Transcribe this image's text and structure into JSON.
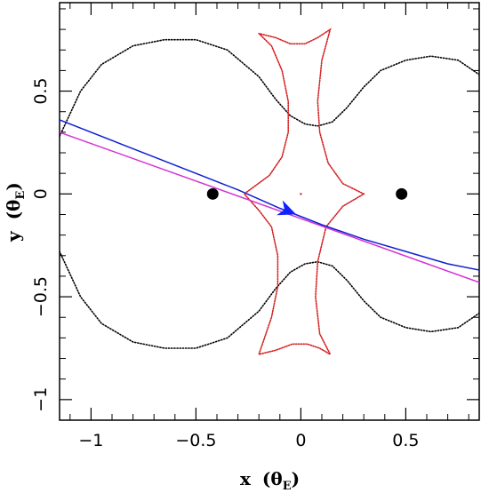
{
  "chart_data": {
    "type": "line",
    "xlabel": "x",
    "ylabel": "y",
    "axis_unit_symbol": "θ",
    "axis_unit_subscript": "E",
    "xlim": [
      -1.15,
      0.85
    ],
    "ylim": [
      -1.1,
      0.93
    ],
    "x_ticks": [
      -1,
      -0.5,
      0,
      0.5
    ],
    "x_tick_labels": [
      "−1",
      "−0.5",
      "0",
      "0.5"
    ],
    "y_ticks": [
      -1,
      -0.5,
      0,
      0.5
    ],
    "y_tick_labels": [
      "−1",
      "−0.5",
      "0",
      "0.5"
    ],
    "grid": false,
    "lenses": [
      {
        "x": -0.42,
        "y": 0.0
      },
      {
        "x": 0.48,
        "y": 0.0
      }
    ],
    "caustic_color": "#d42020",
    "caustic": [
      [
        -0.2,
        0.78
      ],
      [
        -0.14,
        0.72
      ],
      [
        -0.09,
        0.6
      ],
      [
        -0.06,
        0.45
      ],
      [
        -0.06,
        0.3
      ],
      [
        -0.09,
        0.18
      ],
      [
        -0.15,
        0.09
      ],
      [
        -0.27,
        0.0
      ],
      [
        -0.2,
        -0.08
      ],
      [
        -0.14,
        -0.16
      ],
      [
        -0.11,
        -0.3
      ],
      [
        -0.11,
        -0.45
      ],
      [
        -0.14,
        -0.6
      ],
      [
        -0.2,
        -0.78
      ],
      [
        -0.12,
        -0.76
      ],
      [
        -0.04,
        -0.73
      ],
      [
        0.03,
        -0.73
      ],
      [
        0.09,
        -0.75
      ],
      [
        0.14,
        -0.78
      ],
      [
        0.09,
        -0.68
      ],
      [
        0.07,
        -0.5
      ],
      [
        0.08,
        -0.33
      ],
      [
        0.12,
        -0.16
      ],
      [
        0.2,
        -0.06
      ],
      [
        0.3,
        0.0
      ],
      [
        0.2,
        0.05
      ],
      [
        0.13,
        0.15
      ],
      [
        0.09,
        0.3
      ],
      [
        0.08,
        0.45
      ],
      [
        0.1,
        0.65
      ],
      [
        0.14,
        0.8
      ],
      [
        0.08,
        0.76
      ],
      [
        0.02,
        0.73
      ],
      [
        -0.05,
        0.73
      ],
      [
        -0.12,
        0.76
      ],
      [
        -0.2,
        0.78
      ]
    ],
    "caustic_center_dot": {
      "x": 0.0,
      "y": 0.0
    },
    "critical_curve_color": "#000000",
    "critical_upper": [
      [
        -1.15,
        0.28
      ],
      [
        -1.05,
        0.5
      ],
      [
        -0.95,
        0.63
      ],
      [
        -0.8,
        0.72
      ],
      [
        -0.65,
        0.75
      ],
      [
        -0.5,
        0.75
      ],
      [
        -0.35,
        0.7
      ],
      [
        -0.2,
        0.57
      ],
      [
        -0.12,
        0.46
      ],
      [
        -0.05,
        0.38
      ],
      [
        0.02,
        0.34
      ],
      [
        0.08,
        0.33
      ],
      [
        0.15,
        0.35
      ],
      [
        0.22,
        0.42
      ],
      [
        0.3,
        0.52
      ],
      [
        0.38,
        0.6
      ],
      [
        0.5,
        0.65
      ],
      [
        0.62,
        0.67
      ],
      [
        0.75,
        0.65
      ],
      [
        0.85,
        0.58
      ]
    ],
    "critical_lower": [
      [
        -1.15,
        -0.28
      ],
      [
        -1.05,
        -0.5
      ],
      [
        -0.95,
        -0.63
      ],
      [
        -0.8,
        -0.72
      ],
      [
        -0.65,
        -0.75
      ],
      [
        -0.5,
        -0.75
      ],
      [
        -0.35,
        -0.7
      ],
      [
        -0.2,
        -0.57
      ],
      [
        -0.12,
        -0.46
      ],
      [
        -0.05,
        -0.38
      ],
      [
        0.02,
        -0.34
      ],
      [
        0.08,
        -0.33
      ],
      [
        0.15,
        -0.35
      ],
      [
        0.22,
        -0.42
      ],
      [
        0.3,
        -0.52
      ],
      [
        0.38,
        -0.6
      ],
      [
        0.5,
        -0.65
      ],
      [
        0.62,
        -0.67
      ],
      [
        0.75,
        -0.65
      ],
      [
        0.85,
        -0.58
      ]
    ],
    "series": [
      {
        "color": "#d433d4",
        "x": [
          -1.15,
          0.85
        ],
        "y": [
          0.3,
          -0.43
        ]
      },
      {
        "color": "#1020d0",
        "x": [
          -1.15,
          -0.8,
          -0.5,
          -0.3,
          -0.1,
          0.1,
          0.3,
          0.5,
          0.7,
          0.85
        ],
        "y": [
          0.36,
          0.22,
          0.1,
          0.02,
          -0.07,
          -0.15,
          -0.22,
          -0.28,
          -0.34,
          -0.37
        ]
      }
    ],
    "arrow": {
      "x": -0.07,
      "y": -0.08,
      "dx": 1.0,
      "dy": -0.4,
      "color": "#1020ff"
    }
  }
}
